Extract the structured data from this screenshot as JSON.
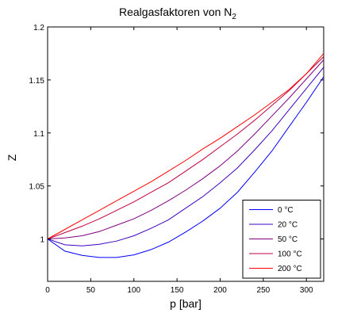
{
  "chart_data": {
    "type": "line",
    "title": "Realgasfaktoren von N",
    "title_subscript": "2",
    "xlabel": "p [bar]",
    "ylabel": "Z",
    "xlim": [
      0,
      320
    ],
    "ylim": [
      0.96,
      1.2
    ],
    "x_ticks": [
      0,
      50,
      100,
      150,
      200,
      250,
      300
    ],
    "x_tick_labels": [
      "0",
      "50",
      "100",
      "150",
      "200",
      "250",
      "300"
    ],
    "y_ticks": [
      1,
      1.05,
      1.1,
      1.15,
      1.2
    ],
    "y_tick_labels": [
      "1",
      "1.05",
      "1.1",
      "1.15",
      "1.2"
    ],
    "grid": false,
    "legend_position": "bottom-right",
    "x": [
      0,
      20,
      40,
      60,
      80,
      100,
      120,
      140,
      160,
      180,
      200,
      220,
      240,
      260,
      280,
      300,
      320
    ],
    "series": [
      {
        "name": "0 °C",
        "color": "#0000ff",
        "values": [
          1.0,
          0.9885,
          0.9845,
          0.9825,
          0.9825,
          0.985,
          0.99,
          0.997,
          1.0065,
          1.017,
          1.029,
          1.044,
          1.063,
          1.083,
          1.106,
          1.129,
          1.153
        ]
      },
      {
        "name": "20 °C",
        "color": "#3f00bf",
        "values": [
          1.0,
          0.9945,
          0.9935,
          0.995,
          0.998,
          1.003,
          1.01,
          1.018,
          1.029,
          1.04,
          1.053,
          1.067,
          1.084,
          1.102,
          1.122,
          1.142,
          1.162
        ]
      },
      {
        "name": "50 °C",
        "color": "#7f0080",
        "values": [
          1.0,
          1.001,
          1.003,
          1.007,
          1.013,
          1.019,
          1.027,
          1.036,
          1.046,
          1.057,
          1.069,
          1.083,
          1.099,
          1.116,
          1.133,
          1.151,
          1.169
        ]
      },
      {
        "name": "100 °C",
        "color": "#bf0040",
        "values": [
          1.0,
          1.006,
          1.012,
          1.019,
          1.027,
          1.035,
          1.044,
          1.053,
          1.064,
          1.075,
          1.087,
          1.099,
          1.112,
          1.126,
          1.14,
          1.156,
          1.172
        ]
      },
      {
        "name": "200 °C",
        "color": "#ff0000",
        "values": [
          1.0,
          1.009,
          1.018,
          1.027,
          1.036,
          1.045,
          1.054,
          1.064,
          1.074,
          1.085,
          1.095,
          1.106,
          1.117,
          1.129,
          1.141,
          1.156,
          1.175
        ]
      }
    ]
  }
}
